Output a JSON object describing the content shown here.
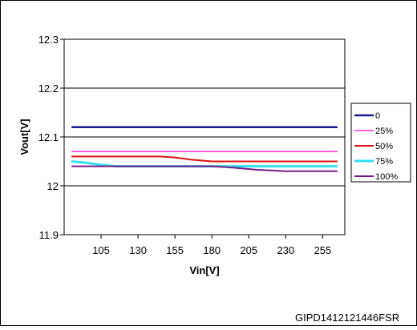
{
  "chart_data": {
    "type": "line",
    "title": "",
    "xlabel": "Vin[V]",
    "ylabel": "Vout[V]",
    "x": [
      85,
      105,
      130,
      155,
      180,
      205,
      230,
      265
    ],
    "xticks": [
      "105",
      "130",
      "155",
      "180",
      "205",
      "230",
      "255"
    ],
    "xtick_values": [
      105,
      130,
      155,
      180,
      205,
      230,
      255
    ],
    "xlim": [
      80,
      270
    ],
    "ylim": [
      11.9,
      12.3
    ],
    "yticks": [
      "11.9",
      "12",
      "12.1",
      "12.2",
      "12.3"
    ],
    "ytick_values": [
      11.9,
      12.0,
      12.1,
      12.2,
      12.3
    ],
    "grid": "horizontal",
    "legend_position": "right",
    "series": [
      {
        "name": "0",
        "color": "#1a1a8c",
        "width": 2.5,
        "x": [
          85,
          265
        ],
        "values": [
          12.12,
          12.12
        ]
      },
      {
        "name": "25%",
        "color": "#ff33cc",
        "width": 1.5,
        "x": [
          85,
          265
        ],
        "values": [
          12.07,
          12.07
        ]
      },
      {
        "name": "50%",
        "color": "#dd1111",
        "width": 2,
        "x": [
          85,
          105,
          130,
          145,
          155,
          165,
          180,
          205,
          230,
          265
        ],
        "values": [
          12.06,
          12.06,
          12.06,
          12.06,
          12.058,
          12.054,
          12.05,
          12.05,
          12.05,
          12.05
        ]
      },
      {
        "name": "75%",
        "color": "#33e0f0",
        "width": 3,
        "x": [
          85,
          95,
          105,
          115,
          130,
          155,
          180,
          205,
          230,
          265
        ],
        "values": [
          12.05,
          12.047,
          12.043,
          12.04,
          12.04,
          12.04,
          12.04,
          12.04,
          12.04,
          12.04
        ]
      },
      {
        "name": "100%",
        "color": "#7a1a8a",
        "width": 2,
        "x": [
          85,
          105,
          130,
          155,
          180,
          195,
          210,
          230,
          265
        ],
        "values": [
          12.04,
          12.04,
          12.04,
          12.04,
          12.04,
          12.037,
          12.033,
          12.03,
          12.03
        ]
      }
    ]
  },
  "footer_code": "GIPD1412121446FSR"
}
